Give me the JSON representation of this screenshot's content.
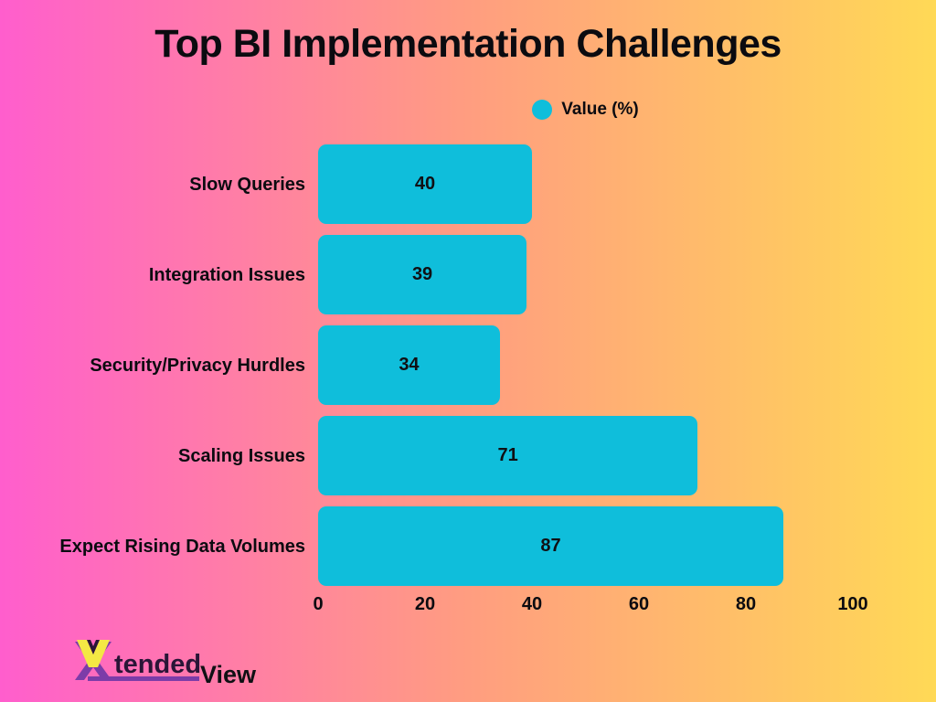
{
  "title": "Top BI Implementation Challenges",
  "legend": {
    "label": "Value (%)",
    "marker_color": "#0fbedb"
  },
  "chart_data": {
    "type": "bar",
    "orientation": "horizontal",
    "title": "Top BI Implementation Challenges",
    "categories": [
      "Slow Queries",
      "Integration Issues",
      "Security/Privacy Hurdles",
      "Scaling Issues",
      "Expect Rising Data Volumes"
    ],
    "values": [
      40,
      39,
      34,
      71,
      87
    ],
    "series_label": "Value (%)",
    "value_labels": [
      "40",
      "39",
      "34",
      "71",
      "87"
    ],
    "xlim": [
      0,
      100
    ],
    "x_ticks": [
      0,
      20,
      40,
      60,
      80,
      100
    ],
    "bar_color": "#0fbedb",
    "value_label_position": "center",
    "grid": false,
    "legend_position": "top-center"
  },
  "branding": {
    "tended": "tended",
    "view": "View"
  },
  "colors": {
    "background_left": "#ff5ecd",
    "background_mid": "#ff9d80",
    "background_right": "#ffd956",
    "bar": "#0fbedb",
    "text": "#0b0b10",
    "logo_purple": "#7c3ca8",
    "logo_yellow": "#f4e844",
    "logo_dark": "#2a1537"
  }
}
